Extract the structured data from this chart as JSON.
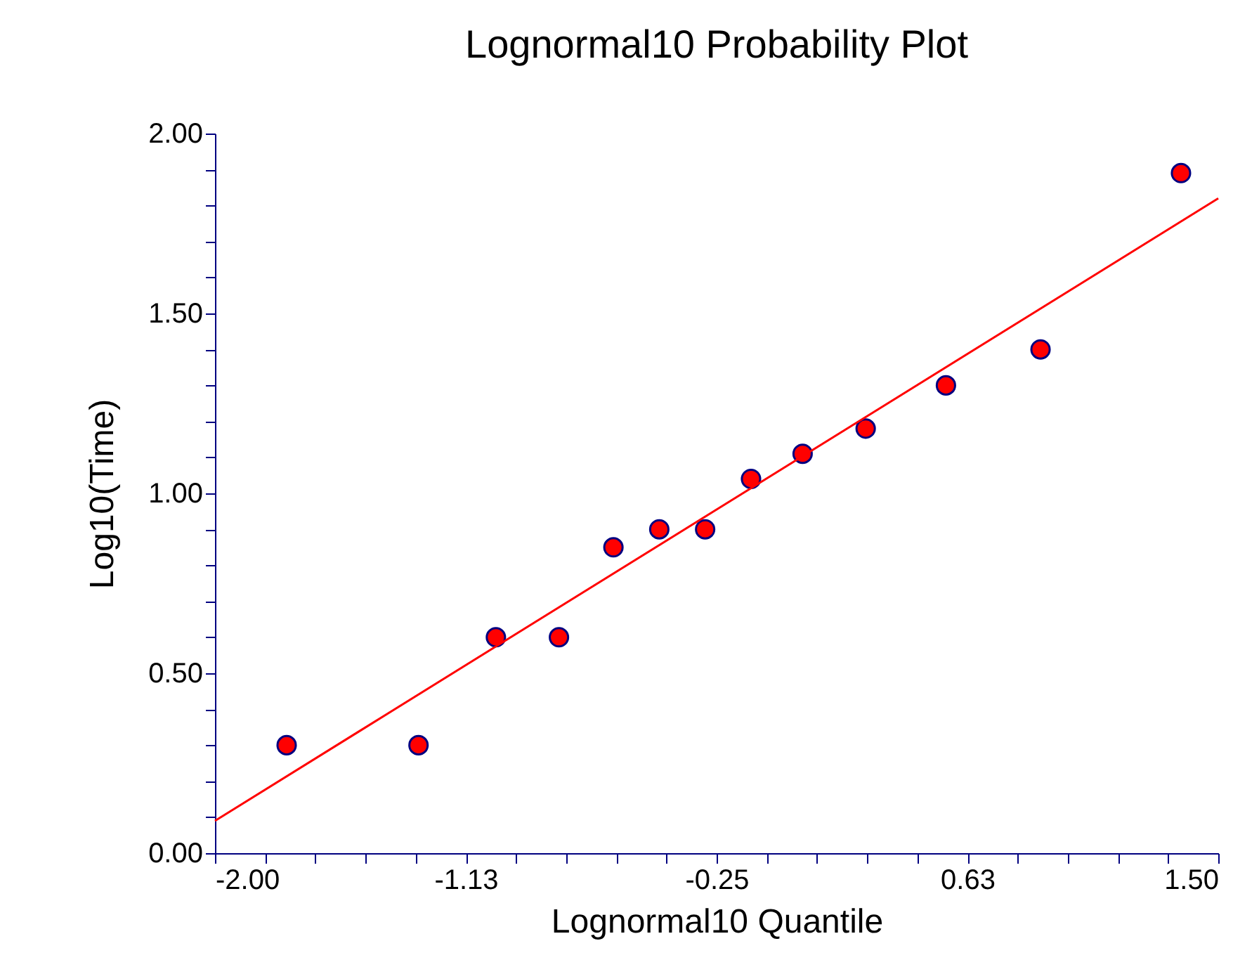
{
  "chart_data": {
    "type": "scatter",
    "title": "Lognormal10 Probability Plot",
    "xlabel": "Lognormal10 Quantile",
    "ylabel": "Log10(Time)",
    "xlim": [
      -2,
      1.5
    ],
    "ylim": [
      0,
      2
    ],
    "xticks": [
      {
        "value": -2,
        "label": "-2.00"
      },
      {
        "value": -1.825,
        "label": null
      },
      {
        "value": -1.65,
        "label": null
      },
      {
        "value": -1.475,
        "label": null
      },
      {
        "value": -1.3,
        "label": null
      },
      {
        "value": -1.125,
        "label": "-1.13"
      },
      {
        "value": -0.95,
        "label": null
      },
      {
        "value": -0.775,
        "label": null
      },
      {
        "value": -0.6,
        "label": null
      },
      {
        "value": -0.425,
        "label": null
      },
      {
        "value": -0.25,
        "label": "-0.25"
      },
      {
        "value": -0.075,
        "label": null
      },
      {
        "value": 0.1,
        "label": null
      },
      {
        "value": 0.275,
        "label": null
      },
      {
        "value": 0.45,
        "label": null
      },
      {
        "value": 0.625,
        "label": "0.63"
      },
      {
        "value": 0.8,
        "label": null
      },
      {
        "value": 0.975,
        "label": null
      },
      {
        "value": 1.15,
        "label": null
      },
      {
        "value": 1.325,
        "label": null
      },
      {
        "value": 1.5,
        "label": "1.50"
      }
    ],
    "yticks": [
      {
        "value": 0,
        "label": "0.00"
      },
      {
        "value": 0.1,
        "label": null
      },
      {
        "value": 0.2,
        "label": null
      },
      {
        "value": 0.3,
        "label": null
      },
      {
        "value": 0.4,
        "label": null
      },
      {
        "value": 0.5,
        "label": "0.50"
      },
      {
        "value": 0.6,
        "label": null
      },
      {
        "value": 0.7,
        "label": null
      },
      {
        "value": 0.8,
        "label": null
      },
      {
        "value": 0.9,
        "label": null
      },
      {
        "value": 1,
        "label": "1.00"
      },
      {
        "value": 1.1,
        "label": null
      },
      {
        "value": 1.2,
        "label": null
      },
      {
        "value": 1.3,
        "label": null
      },
      {
        "value": 1.4,
        "label": null
      },
      {
        "value": 1.5,
        "label": "1.50"
      },
      {
        "value": 1.6,
        "label": null
      },
      {
        "value": 1.7,
        "label": null
      },
      {
        "value": 1.8,
        "label": null
      },
      {
        "value": 1.9,
        "label": null
      },
      {
        "value": 2,
        "label": "2.00"
      }
    ],
    "marker": "circle",
    "grid": false,
    "series": [
      {
        "color": "#ff0000",
        "x": [
          -1.75,
          -1.29,
          -1.02,
          -0.8,
          -0.61,
          -0.45,
          -0.29,
          -0.13,
          0.05,
          0.27,
          0.55,
          0.88,
          1.37
        ],
        "values": [
          0.3,
          0.3,
          0.6,
          0.6,
          0.85,
          0.9,
          0.9,
          1.04,
          1.11,
          1.18,
          1.3,
          1.4,
          1.89
        ]
      },
      {
        "type": "line",
        "marker": "none",
        "color": "#ff0000",
        "x": [
          -2,
          1.5
        ],
        "values": [
          0.09,
          1.82
        ]
      }
    ]
  }
}
